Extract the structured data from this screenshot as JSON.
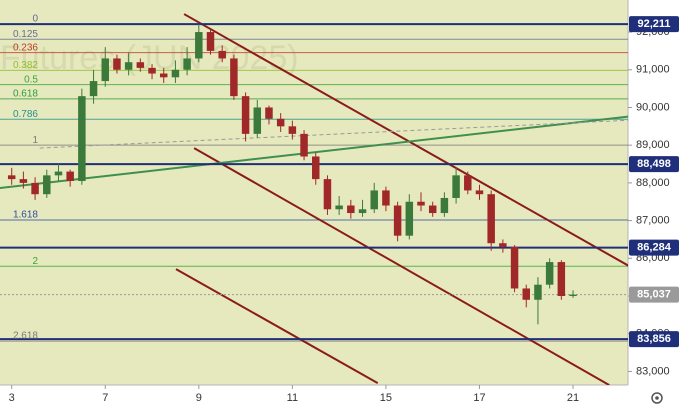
{
  "chart_data": {
    "type": "candlestick",
    "watermark": "Futures (JUN 2025)",
    "x": [
      0,
      1,
      2,
      3,
      4,
      5,
      6,
      7,
      8,
      9,
      10,
      11,
      12,
      13,
      14,
      15,
      16,
      17,
      18,
      19,
      20,
      21,
      22,
      23,
      24,
      25,
      26,
      27,
      28,
      29,
      30,
      31,
      32,
      33,
      34,
      35,
      36,
      37,
      38,
      39,
      40,
      41,
      42,
      43,
      44,
      45,
      46,
      47,
      48
    ],
    "xlim": [
      -1,
      52.7
    ],
    "xticks": [
      {
        "value": 0,
        "label": "3"
      },
      {
        "value": 8,
        "label": "7"
      },
      {
        "value": 16,
        "label": "9"
      },
      {
        "value": 24,
        "label": "11"
      },
      {
        "value": 32,
        "label": "15"
      },
      {
        "value": 40,
        "label": "17"
      },
      {
        "value": 48,
        "label": "21"
      }
    ],
    "ylim": [
      82640,
      92850
    ],
    "yticks": [
      {
        "value": 83000,
        "label": "83,000"
      },
      {
        "value": 84000,
        "label": "84,000"
      },
      {
        "value": 85000,
        "label": "85,000"
      },
      {
        "value": 86000,
        "label": "86,000"
      },
      {
        "value": 87000,
        "label": "87,000"
      },
      {
        "value": 88000,
        "label": "88,000"
      },
      {
        "value": 89000,
        "label": "89,000"
      },
      {
        "value": 90000,
        "label": "90,000"
      },
      {
        "value": 91000,
        "label": "91,000"
      },
      {
        "value": 92000,
        "label": "92,000"
      }
    ],
    "open": [
      88200,
      88100,
      88000,
      87700,
      88200,
      88300,
      88050,
      90300,
      90700,
      91300,
      91000,
      91200,
      91050,
      90900,
      90800,
      91000,
      91300,
      92000,
      91500,
      91300,
      90300,
      89300,
      90000,
      89700,
      89500,
      89300,
      88700,
      88100,
      87300,
      87400,
      87200,
      87300,
      87800,
      87400,
      86600,
      87500,
      87400,
      87200,
      87600,
      88200,
      87800,
      87700,
      86400,
      86300,
      85200,
      84900,
      85300,
      85900,
      85000
    ],
    "high": [
      88400,
      88300,
      88150,
      88350,
      88500,
      88350,
      90500,
      91000,
      91600,
      91400,
      91450,
      91300,
      91150,
      91050,
      91250,
      91600,
      92211,
      92050,
      91650,
      91400,
      90400,
      90200,
      90050,
      89850,
      89650,
      89400,
      88800,
      88200,
      87650,
      87550,
      87550,
      88000,
      87900,
      87500,
      87700,
      87750,
      87500,
      87750,
      88400,
      88300,
      87950,
      87800,
      86500,
      86350,
      85300,
      85500,
      86000,
      85950,
      85150
    ],
    "low": [
      87950,
      87850,
      87550,
      87600,
      88050,
      87900,
      87950,
      90100,
      90550,
      90900,
      90850,
      90950,
      90750,
      90650,
      90650,
      90850,
      91200,
      91400,
      91200,
      90200,
      89100,
      89200,
      89550,
      89350,
      89150,
      88600,
      87950,
      87150,
      87150,
      87050,
      87100,
      87200,
      87250,
      86450,
      86500,
      87250,
      87100,
      87100,
      87450,
      87700,
      87550,
      86200,
      86150,
      85100,
      84700,
      84250,
      85200,
      84900,
      84950
    ],
    "close": [
      88100,
      88000,
      87700,
      88200,
      88300,
      88050,
      90300,
      90700,
      91300,
      91000,
      91200,
      91050,
      90900,
      90800,
      91000,
      91300,
      92000,
      91500,
      91300,
      90300,
      89300,
      90000,
      89700,
      89500,
      89300,
      88700,
      88100,
      87300,
      87400,
      87200,
      87300,
      87800,
      87400,
      86600,
      87500,
      87400,
      87200,
      87600,
      88200,
      87800,
      87700,
      86400,
      86300,
      85200,
      84900,
      85300,
      85900,
      85000,
      85037
    ],
    "up_color": "#3c7a3c",
    "down_color": "#a02828",
    "fib": [
      {
        "ratio": 0,
        "price": 92211,
        "color": "#6a6a8a"
      },
      {
        "ratio": 0.125,
        "price": 91810,
        "color": "#6a7090"
      },
      {
        "ratio": 0.236,
        "price": 91453,
        "color": "#c0392b"
      },
      {
        "ratio": 0.382,
        "price": 90984,
        "color": "#8fbf2f"
      },
      {
        "ratio": 0.5,
        "price": 90606,
        "color": "#3aa53a"
      },
      {
        "ratio": 0.618,
        "price": 90227,
        "color": "#2e9e3e"
      },
      {
        "ratio": 0.786,
        "price": 89687,
        "color": "#2a8f8f"
      },
      {
        "ratio": 1,
        "price": 89000,
        "color": "#7a7a7a"
      },
      {
        "ratio": 1.618,
        "price": 87016,
        "color": "#2f4fa0"
      },
      {
        "ratio": 2,
        "price": 85789,
        "color": "#3aa53a"
      },
      {
        "ratio": 2.618,
        "price": 83805,
        "color": "#7a7a7a"
      }
    ],
    "levels": [
      {
        "price": {
          "value": 92211,
          "label": "92,211"
        },
        "color": "#1f2f7a"
      },
      {
        "price": {
          "value": 88498,
          "label": "88,498"
        },
        "color": "#1f2f7a"
      },
      {
        "price": {
          "value": 86284,
          "label": "86,284"
        },
        "color": "#1f2f7a"
      },
      {
        "price": {
          "value": 85037,
          "label": "85,037"
        },
        "color": "#9a9a9a"
      },
      {
        "price": {
          "value": 83856,
          "label": "83,856"
        },
        "color": "#1f2f7a"
      }
    ],
    "trendlines": [
      {
        "color": "#8b1a1a",
        "x": [
          14.74,
          53.1
        ],
        "y": [
          92477,
          85740
        ]
      },
      {
        "color": "#8b1a1a",
        "x": [
          15.6,
          51.1
        ],
        "y": [
          88923,
          82637
        ]
      },
      {
        "color": "#8b1a1a",
        "x": [
          14.05,
          31.3
        ],
        "y": [
          85714,
          82690
        ]
      },
      {
        "color": "#3f8f4f",
        "x": [
          -1.03,
          53.1
        ],
        "y": [
          87862,
          89772
        ]
      },
      {
        "color": "#9a9a9a",
        "dashed": true,
        "x": [
          2.4,
          53.1
        ],
        "y": [
          88923,
          89666
        ]
      }
    ]
  }
}
